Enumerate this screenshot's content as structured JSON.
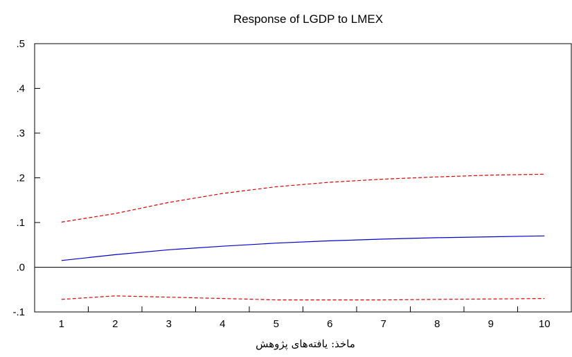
{
  "chart_data": {
    "type": "line",
    "title": "Response of LGDP to LMEX",
    "xlabel": "",
    "ylabel": "",
    "x": [
      1,
      2,
      3,
      4,
      5,
      6,
      7,
      8,
      9,
      10
    ],
    "x_tick_labels": [
      "1",
      "2",
      "3",
      "4",
      "5",
      "6",
      "7",
      "8",
      "9",
      "10"
    ],
    "ylim": [
      -0.1,
      0.5
    ],
    "y_ticks": [
      -0.1,
      0.0,
      0.1,
      0.2,
      0.3,
      0.4,
      0.5
    ],
    "y_tick_labels": [
      "-.1",
      ".0",
      ".1",
      ".2",
      ".3",
      ".4",
      ".5"
    ],
    "grid": false,
    "zero_line": true,
    "series": [
      {
        "values": [
          0.015,
          0.028,
          0.039,
          0.047,
          0.054,
          0.059,
          0.063,
          0.066,
          0.068,
          0.07
        ],
        "color": "#0000cc",
        "style": "solid"
      },
      {
        "values": [
          0.101,
          0.12,
          0.145,
          0.165,
          0.18,
          0.19,
          0.197,
          0.202,
          0.206,
          0.208
        ],
        "color": "#dd0000",
        "style": "dashed"
      },
      {
        "values": [
          -0.072,
          -0.064,
          -0.067,
          -0.07,
          -0.073,
          -0.073,
          -0.073,
          -0.072,
          -0.071,
          -0.07
        ],
        "color": "#dd0000",
        "style": "dashed"
      }
    ]
  },
  "footer": {
    "source_label": "ماخذ: یافته‌های پژوهش"
  }
}
